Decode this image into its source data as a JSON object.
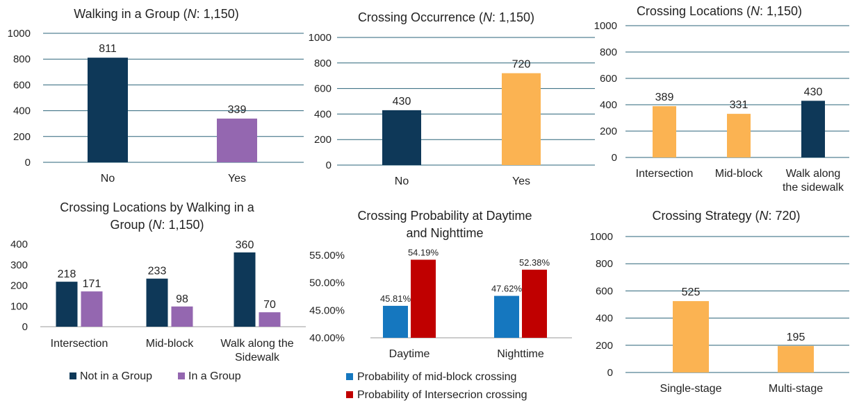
{
  "colors": {
    "navy": "#0e3858",
    "purple": "#9467b0",
    "orange": "#fbb352",
    "blue": "#1577bf",
    "red": "#c00000",
    "grid": "#2a6378"
  },
  "chart_data": [
    {
      "type": "bar",
      "title_parts": [
        "Walking in a Group (",
        "N",
        ": 1,150)"
      ],
      "categories": [
        "No",
        "Yes"
      ],
      "values": [
        811,
        339
      ],
      "value_labels": [
        "811",
        "339"
      ],
      "bar_colors": [
        "navy",
        "purple"
      ],
      "ylim": [
        0,
        1000
      ],
      "yticks": [
        0,
        200,
        400,
        600,
        800,
        1000
      ],
      "ytick_labels": [
        "0",
        "200",
        "400",
        "600",
        "800",
        "1000"
      ],
      "grid": true
    },
    {
      "type": "bar",
      "title_parts": [
        "Crossing Occurrence (",
        "N",
        ": 1,150)"
      ],
      "categories": [
        "No",
        "Yes"
      ],
      "values": [
        430,
        720
      ],
      "value_labels": [
        "430",
        "720"
      ],
      "bar_colors": [
        "navy",
        "orange"
      ],
      "ylim": [
        0,
        1000
      ],
      "yticks": [
        0,
        200,
        400,
        600,
        800,
        1000
      ],
      "ytick_labels": [
        "0",
        "200",
        "400",
        "600",
        "800",
        "1000"
      ],
      "grid": true
    },
    {
      "type": "bar",
      "title_parts": [
        "Crossing Locations (",
        "N",
        ": 1,150)"
      ],
      "categories": [
        "Intersection",
        "Mid-block",
        "Walk along the sidewalk"
      ],
      "category_lines": [
        [
          "Intersection"
        ],
        [
          "Mid-block"
        ],
        [
          "Walk along",
          "the sidewalk"
        ]
      ],
      "values": [
        389,
        331,
        430
      ],
      "value_labels": [
        "389",
        "331",
        "430"
      ],
      "bar_colors": [
        "orange",
        "orange",
        "navy"
      ],
      "ylim": [
        0,
        1000
      ],
      "yticks": [
        0,
        200,
        400,
        600,
        800,
        1000
      ],
      "ytick_labels": [
        "0",
        "200",
        "400",
        "600",
        "800",
        "1000"
      ],
      "grid": true
    },
    {
      "type": "bar",
      "title_lines": [
        [
          "Crossing Locations by Walking in a"
        ],
        [
          "Group (",
          "N",
          ": 1,150)"
        ]
      ],
      "categories": [
        "Intersection",
        "Mid-block",
        "Walk along the Sidewalk"
      ],
      "category_lines": [
        [
          "Intersection"
        ],
        [
          "Mid-block"
        ],
        [
          "Walk along the",
          "Sidewalk"
        ]
      ],
      "series": [
        {
          "name": "Not in a Group",
          "values": [
            218,
            233,
            360
          ],
          "value_labels": [
            "218",
            "233",
            "360"
          ],
          "color": "navy"
        },
        {
          "name": "In a Group",
          "values": [
            171,
            98,
            70
          ],
          "value_labels": [
            "171",
            "98",
            "70"
          ],
          "color": "purple"
        }
      ],
      "ylim": [
        0,
        400
      ],
      "yticks": [
        0,
        100,
        200,
        300,
        400
      ],
      "ytick_labels": [
        "0",
        "100",
        "200",
        "300",
        "400"
      ],
      "grid": false,
      "legend_position": "bottom"
    },
    {
      "type": "bar",
      "title_lines": [
        [
          "Crossing Probability at Daytime"
        ],
        [
          "and Nighttime"
        ]
      ],
      "categories": [
        "Daytime",
        "Nighttime"
      ],
      "series": [
        {
          "name": "Probability of mid-block crossing",
          "values": [
            45.81,
            47.62
          ],
          "value_labels": [
            "45.81%",
            "47.62%"
          ],
          "color": "blue"
        },
        {
          "name": "Probability of Intersecrion crossing",
          "values": [
            54.19,
            52.38
          ],
          "value_labels": [
            "54.19%",
            "52.38%"
          ],
          "color": "red"
        }
      ],
      "ylim": [
        40,
        55
      ],
      "yticks": [
        40,
        45,
        50,
        55
      ],
      "ytick_labels": [
        "40.00%",
        "45.00%",
        "50.00%",
        "55.00%"
      ],
      "grid": false,
      "legend_position": "bottom"
    },
    {
      "type": "bar",
      "title_parts": [
        "Crossing Strategy (",
        "N",
        ": 720)"
      ],
      "categories": [
        "Single-stage",
        "Multi-stage"
      ],
      "values": [
        525,
        195
      ],
      "value_labels": [
        "525",
        "195"
      ],
      "bar_colors": [
        "orange",
        "orange"
      ],
      "ylim": [
        0,
        1000
      ],
      "yticks": [
        0,
        200,
        400,
        600,
        800,
        1000
      ],
      "ytick_labels": [
        "0",
        "200",
        "400",
        "600",
        "800",
        "1000"
      ],
      "grid": true
    }
  ]
}
